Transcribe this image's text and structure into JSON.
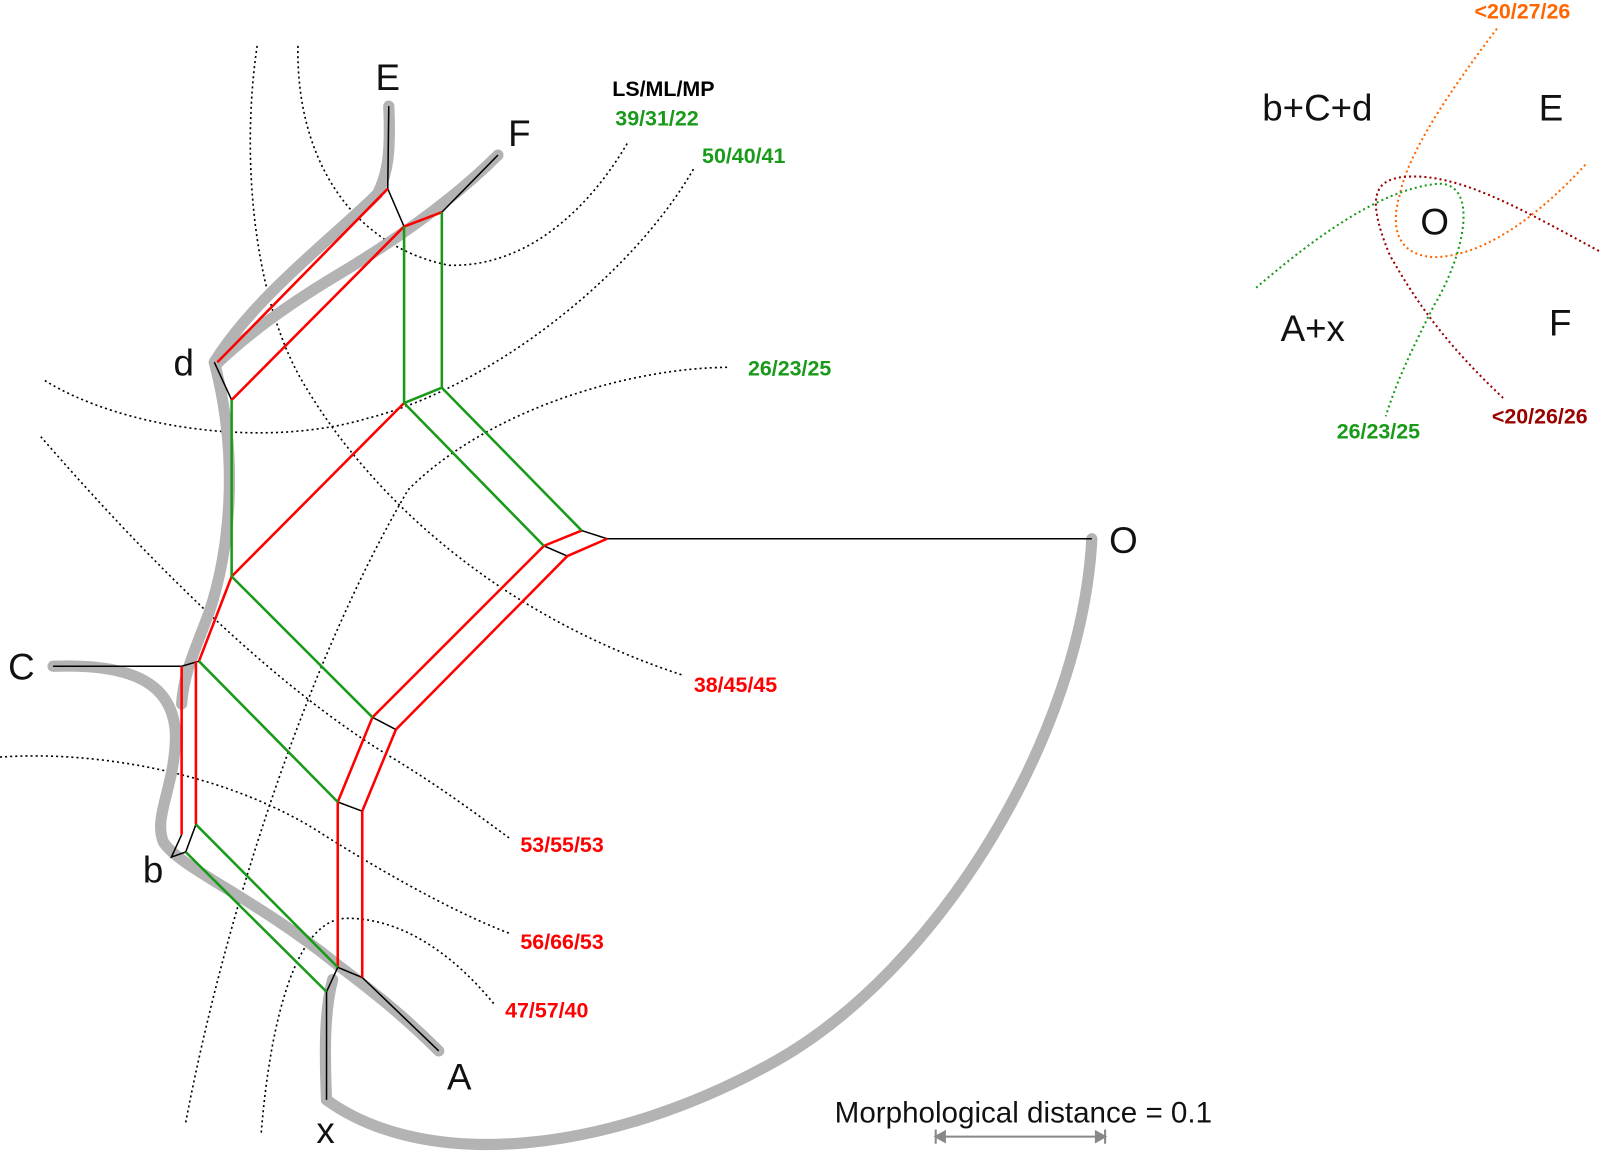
{
  "colors": {
    "split_red": "#ff0000",
    "split_green": "#1a9a1a",
    "orange": "#ff6600",
    "dark_red": "#990000",
    "branch_gray": "#b3b3b3"
  },
  "taxa": {
    "E": "E",
    "F": "F",
    "d": "d",
    "C": "C",
    "b": "b",
    "x": "x",
    "A": "A",
    "O": "O"
  },
  "support_header": "LS/ML/MP",
  "support_values": {
    "s1": "39/31/22",
    "s2": "50/40/41",
    "s3": "26/23/25",
    "s4": "38/45/45",
    "s5": "53/55/53",
    "s6": "56/66/53",
    "s7": "47/57/40"
  },
  "inset": {
    "groups": {
      "bcd": "b+C+d",
      "E": "E",
      "O": "O",
      "Ax": "A+x",
      "F": "F"
    },
    "values": {
      "orange": "<20/27/26",
      "darkred": "<20/26/26",
      "green": "26/23/25"
    }
  },
  "scale_bar": {
    "label": "Morphological distance = 0.1",
    "value": 0.1
  }
}
